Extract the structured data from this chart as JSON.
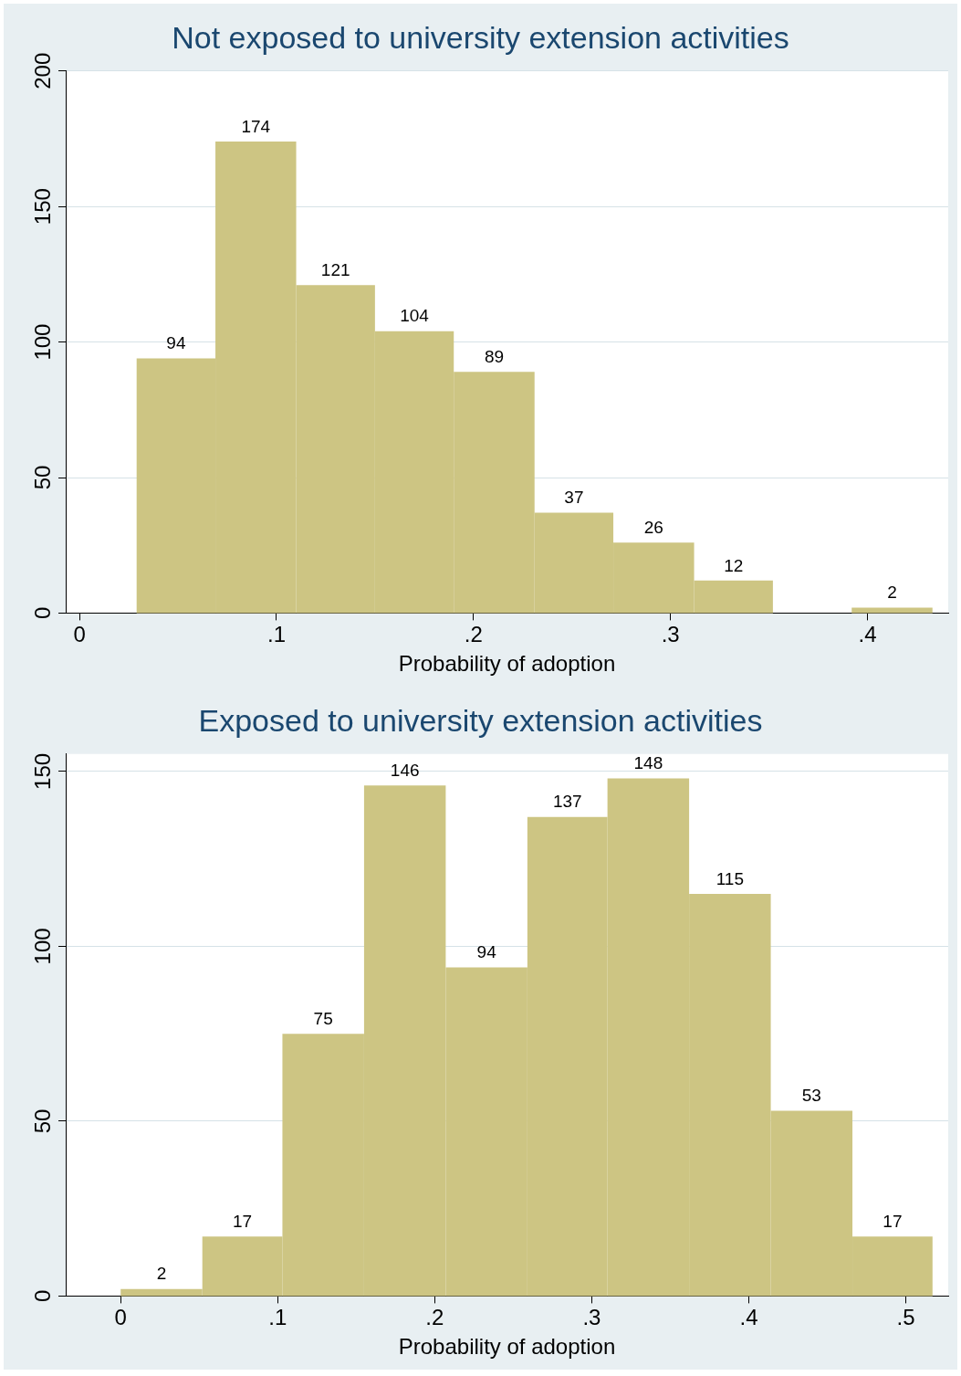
{
  "chart_data": [
    {
      "type": "histogram",
      "title": "Not exposed to university extension activities",
      "xlabel": "Probability of adoption",
      "bins": [
        0.029,
        0.069,
        0.11,
        0.15,
        0.19,
        0.231,
        0.271,
        0.312,
        0.352,
        0.392,
        0.433
      ],
      "values": [
        94,
        174,
        121,
        104,
        89,
        37,
        26,
        12,
        0,
        2
      ],
      "color": "#cdc583",
      "xlim": [
        -0.007,
        0.441
      ],
      "xticks": [
        0,
        {
          "value": 0.1,
          "label": ".1"
        },
        {
          "value": 0.2,
          "label": ".2"
        },
        {
          "value": 0.3,
          "label": ".3"
        },
        {
          "value": 0.4,
          "label": ".4"
        }
      ],
      "ylim": [
        0,
        200
      ],
      "yticks": [
        0,
        50,
        100,
        150,
        200
      ],
      "grid": "y",
      "legend": false,
      "value_labels": [
        "94",
        "174",
        "121",
        "104",
        "89",
        "37",
        "26",
        "12",
        null,
        "2"
      ]
    },
    {
      "type": "histogram",
      "title": "Exposed to university extension activities",
      "xlabel": "Probability of adoption",
      "bins": [
        0,
        0.052,
        0.103,
        0.155,
        0.207,
        0.259,
        0.31,
        0.362,
        0.414,
        0.466,
        0.517
      ],
      "values": [
        2,
        17,
        75,
        146,
        94,
        137,
        148,
        115,
        53,
        17
      ],
      "color": "#cdc583",
      "xlim": [
        -0.035,
        0.527
      ],
      "xticks": [
        0,
        {
          "value": 0.1,
          "label": ".1"
        },
        {
          "value": 0.2,
          "label": ".2"
        },
        {
          "value": 0.3,
          "label": ".3"
        },
        {
          "value": 0.4,
          "label": ".4"
        },
        {
          "value": 0.5,
          "label": ".5"
        }
      ],
      "ylim": [
        0,
        155
      ],
      "yticks": [
        0,
        50,
        100,
        150
      ],
      "grid": "y",
      "legend": false,
      "value_labels": [
        "2",
        "17",
        "75",
        "146",
        "94",
        "137",
        "148",
        "115",
        "53",
        "17"
      ]
    }
  ]
}
